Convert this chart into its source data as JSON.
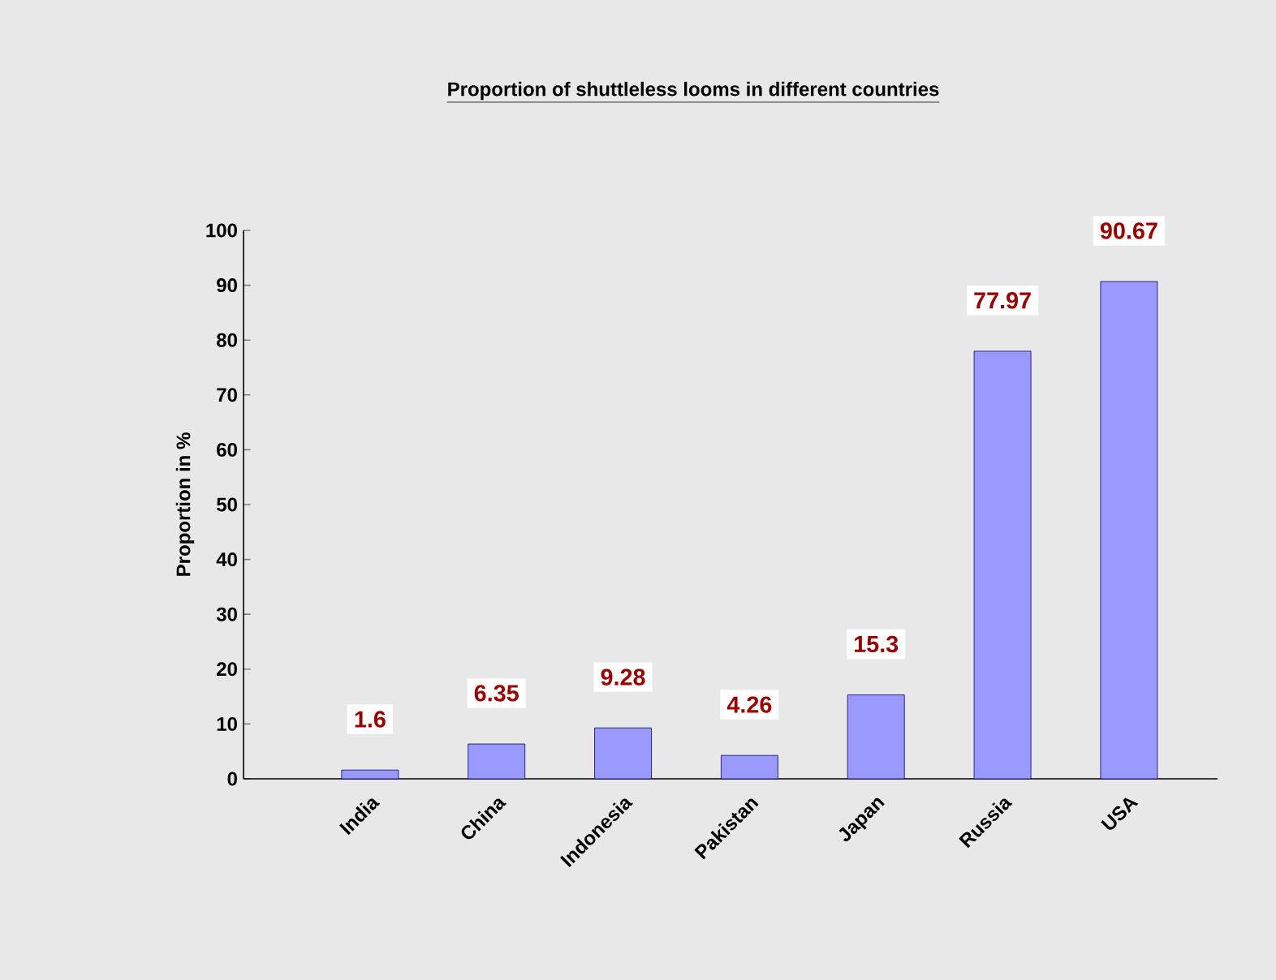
{
  "chart_data": {
    "type": "bar",
    "title": "Proportion of shuttleless looms in different countries",
    "ylabel": "Proportion in %",
    "categories": [
      "India",
      "China",
      "Indonesia",
      "Pakistan",
      "Japan",
      "Russia",
      "USA"
    ],
    "values": [
      1.6,
      6.35,
      9.28,
      4.26,
      15.3,
      77.97,
      90.67
    ],
    "color": "#9999ff",
    "ylim": [
      0,
      100
    ],
    "yticks": [
      0,
      10,
      20,
      30,
      40,
      50,
      60,
      70,
      80,
      90,
      100
    ],
    "grid": false,
    "data_labels": true
  }
}
